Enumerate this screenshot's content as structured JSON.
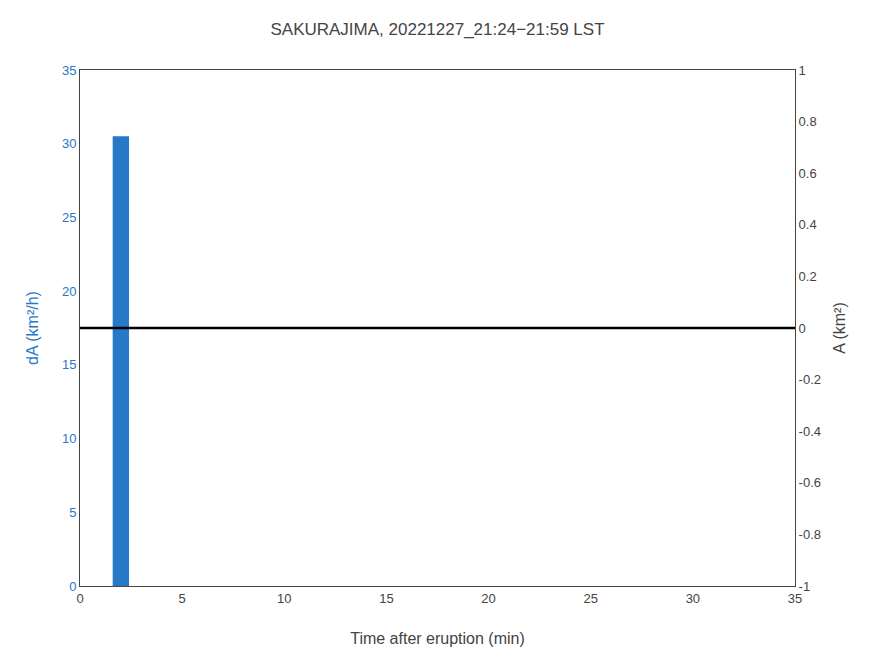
{
  "chart_data": {
    "type": "bar",
    "title": "SAKURAJIMA, 20221227_21:24−21:59 LST",
    "x_label": "Time after eruption (min)",
    "y_label": "dA (km²/h)",
    "y2_label": "A (km²)",
    "x": [
      2.0
    ],
    "series": [
      {
        "type": "bar",
        "values": [
          30.5
        ],
        "color": "#2878C8"
      },
      {
        "type": "hline",
        "axis": "y2",
        "values": [
          0.0
        ],
        "color": "black"
      }
    ],
    "xlim": [
      0,
      35
    ],
    "xticks": [
      0,
      5,
      10,
      15,
      20,
      25,
      30,
      35
    ],
    "ylim": [
      0,
      35
    ],
    "yticks": [
      0,
      5,
      10,
      15,
      20,
      25,
      30,
      35
    ],
    "y2lim": [
      -1,
      1
    ],
    "y2ticks": [
      -1,
      -0.8,
      -0.6,
      -0.4,
      -0.2,
      0,
      0.2,
      0.4,
      0.6,
      0.8,
      1
    ],
    "grid": false
  }
}
